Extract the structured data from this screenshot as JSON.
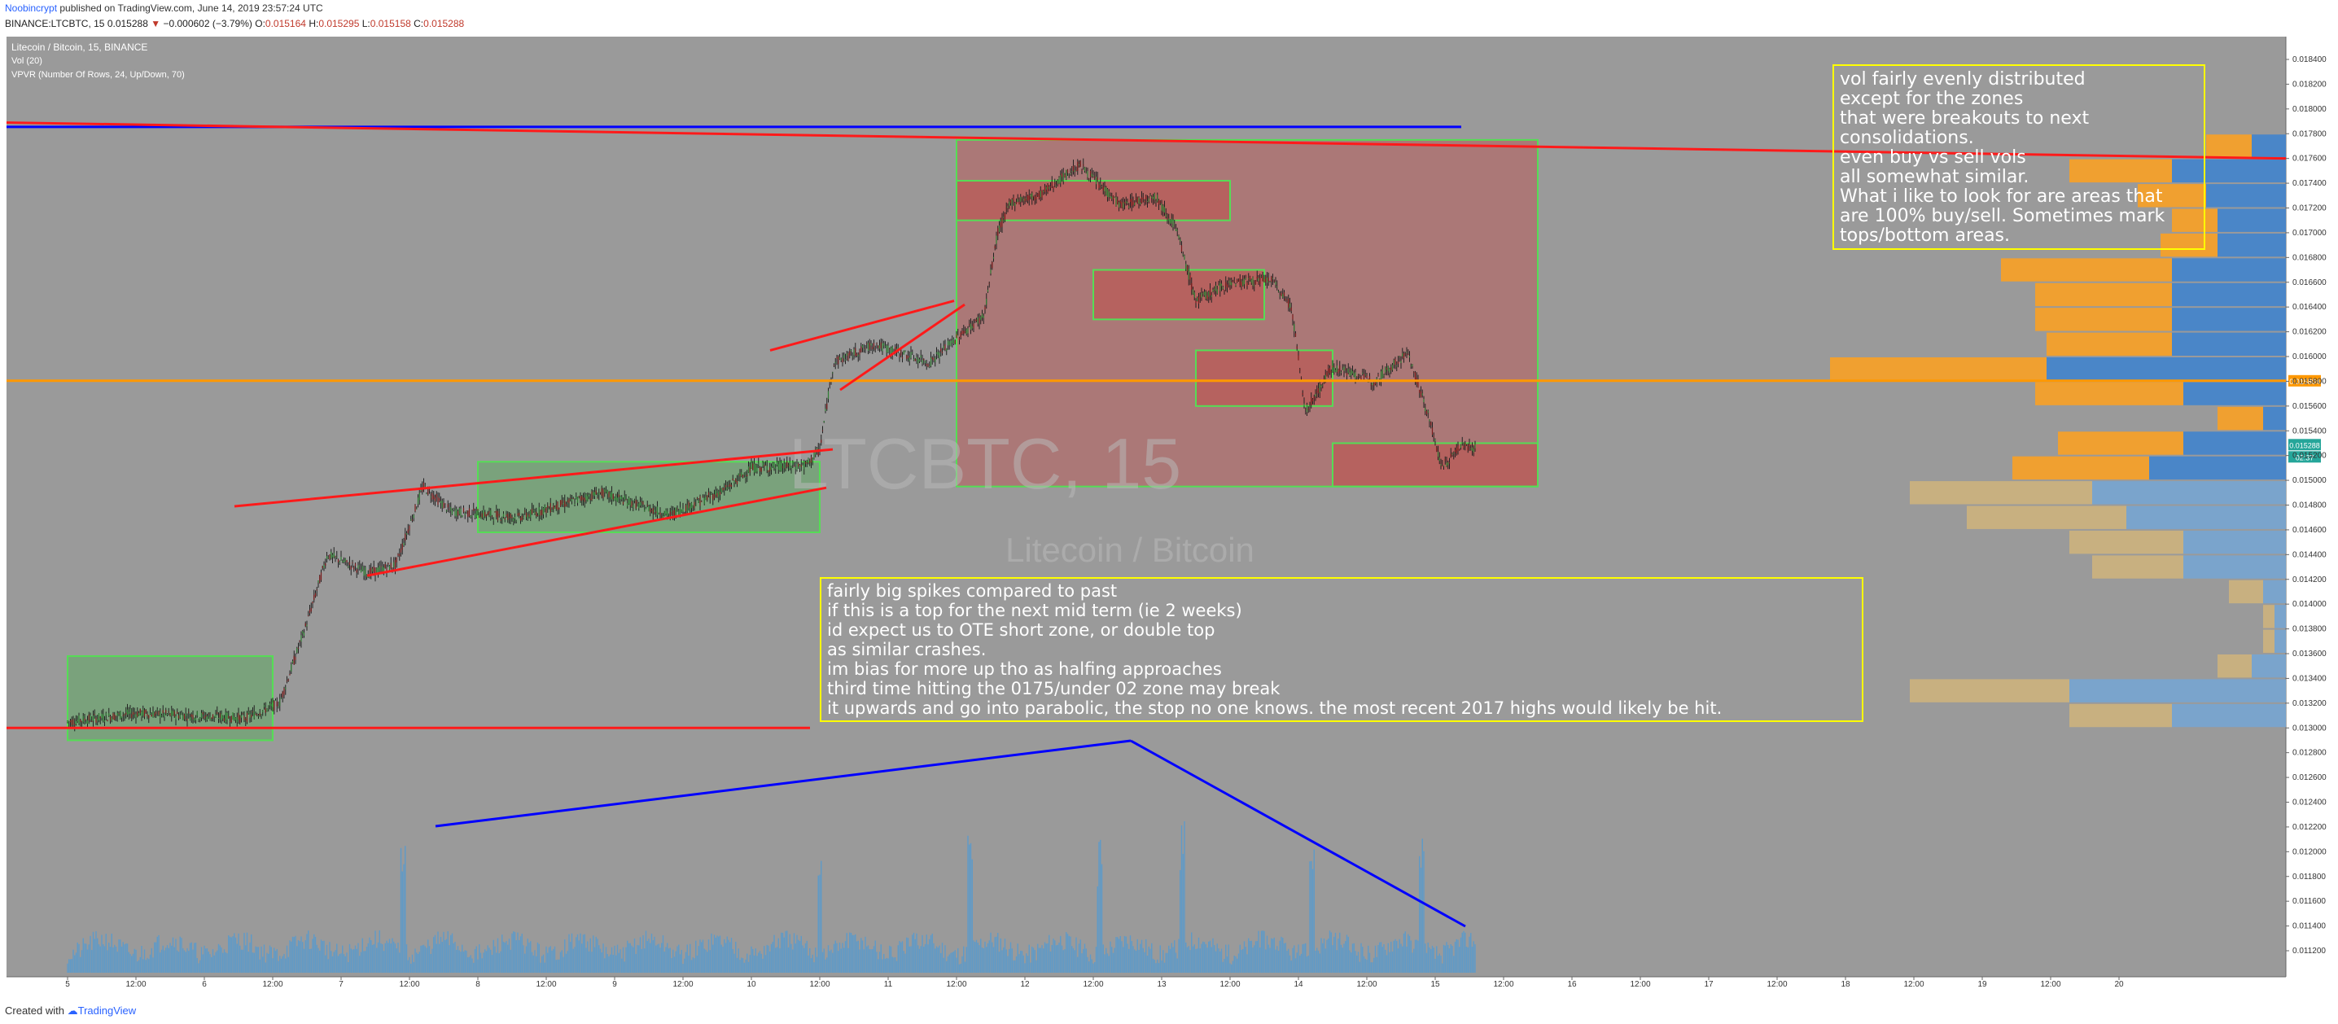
{
  "header": {
    "author": "Noobincrypt",
    "published": "published on TradingView.com, June 14, 2019 23:57:24 UTC",
    "symbol": "BINANCE:LTCBTC, 15",
    "last": "0.015288",
    "change": "−0.000602 (−3.79%)",
    "o_label": "O:",
    "o": "0.015164",
    "h_label": "H:",
    "h": "0.015295",
    "l_label": "L:",
    "l": "0.015158",
    "c_label": "C:",
    "c": "0.015288"
  },
  "legend": {
    "title": "Litecoin / Bitcoin, 15, BINANCE",
    "vol": "Vol (20)",
    "vpvr": "VPVR (Number Of Rows, 24, Up/Down, 70)"
  },
  "watermark": {
    "symbol": "LTCBTC, 15",
    "name": "Litecoin / Bitcoin"
  },
  "annotations": {
    "right": [
      "vol fairly evenly distributed",
      " except for the zones",
      " that were breakouts to next",
      "consolidations.",
      "even buy vs sell vols",
      "all somewhat similar.",
      "What i like to look for are areas that",
      "are 100% buy/sell. Sometimes mark",
      "tops/bottom areas."
    ],
    "center": [
      "fairly big spikes compared to past",
      "if this is a top for the next mid term (ie 2 weeks)",
      "id expect us to OTE short zone, or double top",
      "as similar crashes.",
      "im bias for more up tho as halfing approaches",
      "third time hitting the 0175/under 02 zone may break",
      "it upwards and go into parabolic, the stop no one knows. the most recent 2017 highs would likely be hit."
    ]
  },
  "price_axis": {
    "labels": [
      "0.018400",
      "0.018200",
      "0.018000",
      "0.017800",
      "0.017600",
      "0.017400",
      "0.017200",
      "0.017000",
      "0.016800",
      "0.016600",
      "0.016400",
      "0.016200",
      "0.016000",
      "0.015800",
      "0.015600",
      "0.015400",
      "0.015200",
      "0.015000",
      "0.014800",
      "0.014600",
      "0.014400",
      "0.014200",
      "0.014000",
      "0.013800",
      "0.013600",
      "0.013400",
      "0.013200",
      "0.013000",
      "0.012800",
      "0.012600",
      "0.012400",
      "0.012200",
      "0.012000",
      "0.011800",
      "0.011600",
      "0.011400",
      "0.011200"
    ],
    "orange_line_label": "0.015804",
    "current_label": "0.015288",
    "countdown_label": "02:37"
  },
  "time_axis": {
    "labels": [
      "5",
      "12:00",
      "6",
      "12:00",
      "7",
      "12:00",
      "8",
      "12:00",
      "9",
      "12:00",
      "10",
      "12:00",
      "11",
      "12:00",
      "12",
      "12:00",
      "13",
      "12:00",
      "14",
      "12:00",
      "15",
      "12:00",
      "16",
      "12:00",
      "17",
      "12:00",
      "18",
      "12:00",
      "19",
      "12:00",
      "20"
    ]
  },
  "colors": {
    "background": "#9a9a9a",
    "rect_green": "#4caf50",
    "rect_red": "#c0504d",
    "trend_red": "#ff1a1a",
    "trend_blue": "#0000ff",
    "level_orange": "#ff9800",
    "note_border": "#ffff00",
    "vp_orange": "#f0a030",
    "vp_blue": "#4a86c8",
    "vp_orange_dim": "#c8b080",
    "vp_blue_dim": "#7aa4cc",
    "volume": "#4a9ad8"
  },
  "chart_data": {
    "type": "candlestick",
    "title": "Litecoin / Bitcoin, 15, BINANCE",
    "x": [
      "Jun 5",
      "Jun 6",
      "Jun 7",
      "Jun 8",
      "Jun 9",
      "Jun 10",
      "Jun 11",
      "Jun 12",
      "Jun 13",
      "Jun 14",
      "Jun 15"
    ],
    "close": [
      0.01305,
      0.01312,
      0.01425,
      0.0148,
      0.01475,
      0.0152,
      0.01605,
      0.01725,
      0.01665,
      0.01575,
      0.01529
    ],
    "ylim": [
      0.0111,
      0.0186
    ],
    "xlim": [
      "Jun 5",
      "Jun 20"
    ],
    "levels": {
      "orange": 0.015804,
      "current": 0.015288
    },
    "zones": {
      "green": [
        {
          "from": "Jun 5 00:00",
          "to": "Jun 6 12:00",
          "low": 0.0129,
          "high": 0.01358
        },
        {
          "from": "Jun 8 00:00",
          "to": "Jun 10 12:00",
          "low": 0.01458,
          "high": 0.01515
        },
        {
          "from": "Jun 11 12:00",
          "to": "Jun 15 18:00",
          "low": 0.01495,
          "high": 0.01775
        }
      ],
      "red": [
        {
          "from": "Jun 11 12:00",
          "to": "Jun 15 18:00",
          "low": 0.01495,
          "high": 0.01775
        },
        {
          "from": "Jun 11 12:00",
          "to": "Jun 13 12:00",
          "low": 0.0171,
          "high": 0.01742
        },
        {
          "from": "Jun 12 12:00",
          "to": "Jun 13 18:00",
          "low": 0.0163,
          "high": 0.0167
        },
        {
          "from": "Jun 13 06:00",
          "to": "Jun 14 06:00",
          "low": 0.0156,
          "high": 0.01605
        },
        {
          "from": "Jun 14 06:00",
          "to": "Jun 15 18:00",
          "low": 0.01495,
          "high": 0.0153
        }
      ]
    },
    "volume_profile": {
      "rows": [
        {
          "price": 0.0177,
          "up": 0.4,
          "down": 0.3
        },
        {
          "price": 0.0175,
          "up": 0.9,
          "down": 1.0
        },
        {
          "price": 0.0173,
          "up": 0.6,
          "down": 0.7
        },
        {
          "price": 0.0171,
          "up": 0.4,
          "down": 0.6
        },
        {
          "price": 0.0169,
          "up": 0.5,
          "down": 0.6
        },
        {
          "price": 0.0167,
          "up": 1.5,
          "down": 1.0
        },
        {
          "price": 0.0165,
          "up": 1.2,
          "down": 1.0
        },
        {
          "price": 0.0163,
          "up": 1.2,
          "down": 1.0
        },
        {
          "price": 0.0161,
          "up": 1.1,
          "down": 1.0
        },
        {
          "price": 0.0159,
          "up": 1.9,
          "down": 2.1
        },
        {
          "price": 0.0157,
          "up": 1.3,
          "down": 0.9
        },
        {
          "price": 0.0155,
          "up": 0.4,
          "down": 0.2
        },
        {
          "price": 0.0153,
          "up": 1.1,
          "down": 0.9
        },
        {
          "price": 0.0151,
          "up": 1.2,
          "down": 1.2
        },
        {
          "price": 0.0149,
          "up": 1.6,
          "down": 1.7
        },
        {
          "price": 0.0147,
          "up": 1.4,
          "down": 1.4
        },
        {
          "price": 0.0145,
          "up": 1.0,
          "down": 0.9
        },
        {
          "price": 0.0143,
          "up": 0.8,
          "down": 0.9
        },
        {
          "price": 0.0141,
          "up": 0.3,
          "down": 0.2
        },
        {
          "price": 0.0139,
          "up": 0.1,
          "down": 0.1
        },
        {
          "price": 0.0137,
          "up": 0.1,
          "down": 0.1
        },
        {
          "price": 0.0135,
          "up": 0.3,
          "down": 0.3
        },
        {
          "price": 0.0133,
          "up": 1.4,
          "down": 1.9
        },
        {
          "price": 0.0131,
          "up": 0.9,
          "down": 1.0
        }
      ]
    }
  }
}
